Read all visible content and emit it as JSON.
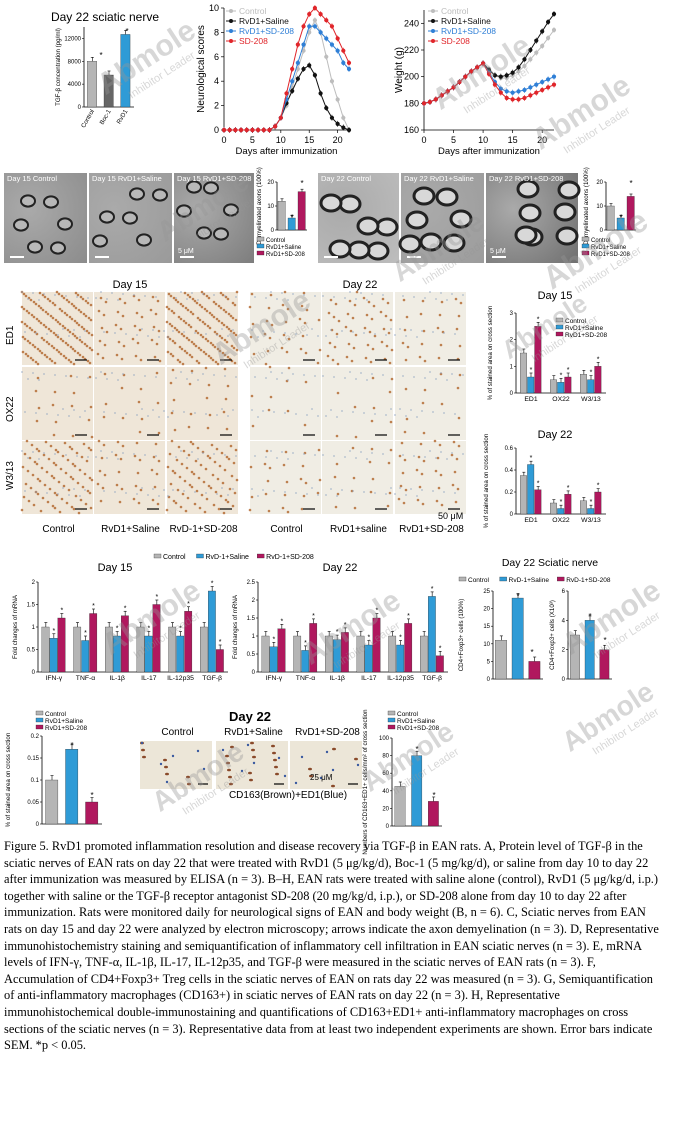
{
  "colors": {
    "control": "#b5b5b5",
    "rvd1_saline": "#2f9bd6",
    "sd208": "#b0185e",
    "boc1": "#666666",
    "rvd1": "#2f9bd6"
  },
  "panelA": {
    "title": "Day 22 sciatic nerve",
    "ylabel": "TGF-β concentration (pg/ml)",
    "ticks": [
      "0",
      "4000",
      "8000",
      "12000"
    ],
    "categories": [
      "Control",
      "Boc-1",
      "RvD1"
    ],
    "star": "*"
  },
  "panelB1": {
    "ylabel": "Neurological scores",
    "xlabel": "Days after immunization",
    "legend": [
      "Control",
      "RvD1+Saline",
      "RvD1+SD-208",
      "SD-208"
    ]
  },
  "panelB2": {
    "ylabel": "Weight (g)",
    "xlabel": "Days after immunization",
    "legend": [
      "Control",
      "RvD1+Saline",
      "RvD1+SD-208",
      "SD-208"
    ]
  },
  "panelC": {
    "labels": [
      "Day 15 Control",
      "Day 15 RvD1+Saline",
      "Day 15 RvD1+SD-208",
      "Day 22 Control",
      "Day 22 RvD1+Saline",
      "Day 22 RvD1+SD-208"
    ],
    "scale": "5 μM",
    "ylabel": "Demyelinated axons (100%)",
    "legend": [
      "Control",
      "RvD1+Saline",
      "RvD1+SD-208"
    ]
  },
  "panelD": {
    "day15": "Day 15",
    "day22": "Day 22",
    "rows": [
      "ED1",
      "OX22",
      "W3/13"
    ],
    "cols15": [
      "Control",
      "RvD1+Saline",
      "RvD-1+SD-208"
    ],
    "cols22": [
      "Control",
      "RvD1+saline",
      "RvD1+SD-208"
    ],
    "scale": "50 μM",
    "chart_title15": "Day 15",
    "chart_title22": "Day 22",
    "ylabel": "% of stained area on cross section",
    "categories": [
      "ED1",
      "OX22",
      "W3/13"
    ],
    "legend": [
      "Control",
      "RvD1+Saline",
      "RvD1+SD-208"
    ]
  },
  "panelE": {
    "legend": [
      "Control",
      "RvD-1+Saline",
      "RvD-1+SD-208"
    ],
    "title15": "Day 15",
    "title22": "Day 22",
    "ylabel": "Fold changes of mRNA",
    "categories": [
      "IFN-γ",
      "TNF-α",
      "IL-1β",
      "IL-17",
      "IL-12p35",
      "TGF-β"
    ]
  },
  "panelF": {
    "title": "Day 22 Sciatic nerve",
    "legend": [
      "Control",
      "RvD-1+Saline",
      "RvD-1+SD-208"
    ],
    "ylabel1": "CD4+Foxp3+ cells (100%)",
    "ylabel2": "CD4+Foxp3+ cells (X10³)"
  },
  "panelG": {
    "legend": [
      "Control",
      "RvD1+Saline",
      "RvD1+SD-208"
    ],
    "ylabel": "% of stained area on cross section"
  },
  "panelH": {
    "title": "Day 22",
    "cols": [
      "Control",
      "RvD1+Saline",
      "RvD1+SD-208"
    ],
    "scale": "25 μM",
    "stain": "CD163(Brown)+ED1(Blue)",
    "ylabel": "Numbers of CD163+ED1+ cells/mm² of cross section",
    "legend": [
      "Control",
      "RvD1+Saline",
      "RvD1+SD-208"
    ]
  },
  "watermark": {
    "brand": "Abmole",
    "sub": "Inhibitor Leader"
  },
  "caption": "Figure 5. RvD1 promoted inflammation resolution and disease recovery via TGF-β in EAN rats. A, Protein level of TGF-β in the sciatic nerves of EAN rats on day 22 that were treated with RvD1 (5 μg/kg/d), Boc-1 (5 mg/kg/d), or saline from day 10 to day 22 after immunization was measured by ELISA (n = 3). B–H, EAN rats were treated with saline alone (control), RvD1 (5 μg/kg/d, i.p.) together with saline or the TGF-β receptor antagonist SD-208 (20 mg/kg/d, i.p.), or SD-208 alone from day 10 to day 22 after immunization. Rats were monitored daily for neurological signs of EAN and body weight (B, n = 6). C, Sciatic nerves from EAN rats on day 15 and day 22 were analyzed by electron microscopy; arrows indicate the axon demyelination (n = 3). D, Representative immunohistochemistry staining and semiquantification of inflammatory cell infiltration in EAN sciatic nerves (n = 3). E, mRNA levels of IFN-γ, TNF-α, IL-1β, IL-17, IL-12p35, and TGF-β were measured in the sciatic nerves of EAN rats (n = 3). F, Accumulation of CD4+Foxp3+ Treg cells in the sciatic nerves of EAN on rats day 22 was measured (n = 3). G, Semiquantification of anti-inflammatory macrophages (CD163+) in sciatic nerves of EAN rats on day 22 (n = 3). H, Representative immunohistochemical double-immunostaining and quantifications of CD163+ED1+ anti-inflammatory macrophages on cross sections of the sciatic nerves (n = 3). Representative data from at least two independent experiments are shown. Error bars indicate SEM. *p < 0.05.",
  "chart_data": [
    {
      "type": "bar",
      "id": "A",
      "categories": [
        "Control",
        "Boc-1",
        "RvD1"
      ],
      "values": [
        8000,
        5600,
        12700
      ],
      "ylim": [
        0,
        14000
      ]
    },
    {
      "type": "line",
      "id": "B1",
      "x": [
        0,
        1,
        2,
        3,
        4,
        5,
        6,
        7,
        8,
        9,
        10,
        11,
        12,
        13,
        14,
        15,
        16,
        17,
        18,
        19,
        20,
        21,
        22
      ],
      "series": [
        {
          "name": "Control",
          "values": [
            0,
            0,
            0,
            0,
            0,
            0,
            0,
            0,
            0,
            0.3,
            1,
            2,
            3.5,
            5,
            6.5,
            8,
            9,
            8,
            6,
            4,
            2.5,
            1,
            0
          ]
        },
        {
          "name": "RvD1+Saline",
          "values": [
            0,
            0,
            0,
            0,
            0,
            0,
            0,
            0,
            0,
            0.3,
            1,
            2.2,
            3.2,
            4.2,
            5,
            5.3,
            4.5,
            3,
            1.8,
            1,
            0.5,
            0.2,
            0
          ]
        },
        {
          "name": "RvD1+SD-208",
          "values": [
            0,
            0,
            0,
            0,
            0,
            0,
            0,
            0,
            0,
            0.3,
            1,
            2.5,
            4,
            5.5,
            7,
            8.5,
            8.5,
            8,
            7.5,
            7,
            6.5,
            5.5,
            5
          ]
        },
        {
          "name": "SD-208",
          "values": [
            0,
            0,
            0,
            0,
            0,
            0,
            0,
            0,
            0,
            0.3,
            1,
            3,
            5,
            7,
            8.5,
            9.5,
            10,
            9.5,
            9,
            8.5,
            7.5,
            6.5,
            5.5
          ]
        }
      ],
      "ylim": [
        0,
        10
      ]
    },
    {
      "type": "line",
      "id": "B2",
      "x": [
        0,
        1,
        2,
        3,
        4,
        5,
        6,
        7,
        8,
        9,
        10,
        11,
        12,
        13,
        14,
        15,
        16,
        17,
        18,
        19,
        20,
        21,
        22
      ],
      "series": [
        {
          "name": "Control",
          "values": [
            180,
            181,
            183,
            186,
            189,
            192,
            196,
            200,
            204,
            207,
            210,
            206,
            201,
            199,
            199,
            201,
            204,
            208,
            213,
            218,
            223,
            229,
            235
          ]
        },
        {
          "name": "RvD1+Saline",
          "values": [
            180,
            181,
            183,
            186,
            189,
            192,
            196,
            200,
            204,
            207,
            210,
            205,
            201,
            200,
            201,
            203,
            207,
            213,
            220,
            227,
            234,
            241,
            247
          ]
        },
        {
          "name": "RvD1+SD-208",
          "values": [
            180,
            181,
            183,
            186,
            189,
            192,
            196,
            200,
            204,
            207,
            210,
            203,
            196,
            191,
            189,
            188,
            189,
            190,
            192,
            194,
            196,
            198,
            200
          ]
        },
        {
          "name": "SD-208",
          "values": [
            180,
            181,
            183,
            186,
            189,
            192,
            196,
            200,
            204,
            207,
            210,
            202,
            194,
            188,
            184,
            183,
            183,
            184,
            186,
            188,
            190,
            192,
            194
          ]
        }
      ],
      "ylim": [
        160,
        250
      ]
    },
    {
      "type": "bar",
      "id": "C15",
      "categories": [
        "Control",
        "RvD1+Saline",
        "RvD1+SD-208"
      ],
      "values": [
        12,
        5,
        16
      ],
      "ylim": [
        0,
        20
      ]
    },
    {
      "type": "bar",
      "id": "C22",
      "categories": [
        "Control",
        "RvD1+Saline",
        "RvD1+SD-208"
      ],
      "values": [
        10,
        5,
        14
      ],
      "ylim": [
        0,
        20
      ]
    },
    {
      "type": "bar",
      "id": "D15",
      "categories": [
        "ED1",
        "OX22",
        "W3/13"
      ],
      "series": [
        {
          "name": "Control",
          "values": [
            1.5,
            0.5,
            0.7
          ]
        },
        {
          "name": "RvD1+Saline",
          "values": [
            0.6,
            0.4,
            0.5
          ]
        },
        {
          "name": "RvD1+SD-208",
          "values": [
            2.5,
            0.6,
            1.0
          ]
        }
      ],
      "ylim": [
        0,
        3
      ]
    },
    {
      "type": "bar",
      "id": "D22",
      "categories": [
        "ED1",
        "OX22",
        "W3/13"
      ],
      "series": [
        {
          "name": "Control",
          "values": [
            0.35,
            0.1,
            0.12
          ]
        },
        {
          "name": "RvD1+Saline",
          "values": [
            0.45,
            0.05,
            0.05
          ]
        },
        {
          "name": "RvD1+SD-208",
          "values": [
            0.22,
            0.18,
            0.2
          ]
        }
      ],
      "ylim": [
        0,
        0.6
      ]
    },
    {
      "type": "bar",
      "id": "E15",
      "categories": [
        "IFN-γ",
        "TNF-α",
        "IL-1β",
        "IL-17",
        "IL-12p35",
        "TGF-β"
      ],
      "series": [
        {
          "name": "Control",
          "values": [
            1,
            1,
            1,
            1,
            1,
            1
          ]
        },
        {
          "name": "RvD-1+Saline",
          "values": [
            0.75,
            0.7,
            0.8,
            0.8,
            0.8,
            1.8
          ]
        },
        {
          "name": "RvD-1+SD-208",
          "values": [
            1.2,
            1.3,
            1.25,
            1.5,
            1.35,
            0.5
          ]
        }
      ],
      "ylim": [
        0,
        2
      ]
    },
    {
      "type": "bar",
      "id": "E22",
      "categories": [
        "IFN-γ",
        "TNF-α",
        "IL-1β",
        "IL-17",
        "IL-12p35",
        "TGF-β"
      ],
      "series": [
        {
          "name": "Control",
          "values": [
            1,
            1,
            1,
            1,
            1,
            1
          ]
        },
        {
          "name": "RvD-1+Saline",
          "values": [
            0.7,
            0.6,
            0.9,
            0.75,
            0.75,
            2.1
          ]
        },
        {
          "name": "RvD-1+SD-208",
          "values": [
            1.2,
            1.35,
            1.1,
            1.5,
            1.35,
            0.45
          ]
        }
      ],
      "ylim": [
        0,
        2.5
      ]
    },
    {
      "type": "bar",
      "id": "F1",
      "categories": [
        "Control",
        "RvD-1+Saline",
        "RvD-1+SD-208"
      ],
      "values": [
        11,
        23,
        5
      ],
      "ylim": [
        0,
        25
      ]
    },
    {
      "type": "bar",
      "id": "F2",
      "categories": [
        "Control",
        "RvD-1+Saline",
        "RvD-1+SD-208"
      ],
      "values": [
        3,
        4,
        2
      ],
      "ylim": [
        0,
        6
      ]
    },
    {
      "type": "bar",
      "id": "G",
      "categories": [
        "Control",
        "RvD1+Saline",
        "RvD1+SD-208"
      ],
      "values": [
        0.1,
        0.17,
        0.05
      ],
      "ylim": [
        0,
        0.2
      ]
    },
    {
      "type": "bar",
      "id": "H",
      "categories": [
        "Control",
        "RvD1+Saline",
        "RvD1+SD-208"
      ],
      "values": [
        45,
        80,
        28
      ],
      "ylim": [
        0,
        100
      ]
    }
  ]
}
